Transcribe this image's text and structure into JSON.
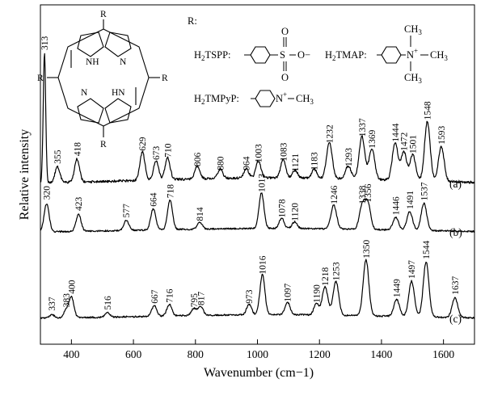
{
  "chart_data": {
    "type": "line",
    "xlabel": "Wavenumber (cm−1)",
    "ylabel": "Relative intensity",
    "xlim": [
      300,
      1700
    ],
    "xticks": [
      400,
      600,
      800,
      1000,
      1200,
      1400,
      1600
    ],
    "grid": false,
    "legend": "none",
    "series": [
      {
        "name": "(a)",
        "peaks": [
          313,
          355,
          418,
          629,
          673,
          710,
          806,
          880,
          964,
          1003,
          1083,
          1121,
          1183,
          1232,
          1293,
          1337,
          1369,
          1444,
          1472,
          1501,
          1548,
          1593
        ],
        "peak_labels": [
          "313",
          "355",
          "418",
          "629",
          "673",
          "710",
          "806",
          "880",
          "964",
          "1003",
          "1083",
          "1121",
          "1183",
          "1232",
          "1293",
          "1337",
          "1369",
          "1444",
          "1472",
          "1501",
          "1548",
          "1593"
        ],
        "peak_heights": [
          1.0,
          0.12,
          0.18,
          0.22,
          0.15,
          0.17,
          0.1,
          0.07,
          0.07,
          0.13,
          0.14,
          0.06,
          0.07,
          0.28,
          0.1,
          0.33,
          0.24,
          0.29,
          0.22,
          0.2,
          0.46,
          0.27
        ]
      },
      {
        "name": "(b)",
        "peaks": [
          320,
          423,
          577,
          664,
          718,
          814,
          1013,
          1078,
          1120,
          1246,
          1338,
          1356,
          1446,
          1491,
          1537
        ],
        "peak_labels": [
          "320",
          "423",
          "577",
          "664",
          "718",
          "814",
          "1013",
          "1078",
          "1120",
          "1246",
          "1338",
          "1356",
          "1446",
          "1491",
          "1537"
        ],
        "peak_heights": [
          0.33,
          0.2,
          0.12,
          0.25,
          0.35,
          0.08,
          0.42,
          0.12,
          0.08,
          0.28,
          0.28,
          0.3,
          0.15,
          0.22,
          0.32
        ]
      },
      {
        "name": "(c)",
        "peaks": [
          337,
          383,
          400,
          516,
          667,
          716,
          795,
          817,
          973,
          1016,
          1097,
          1190,
          1218,
          1253,
          1350,
          1449,
          1497,
          1544,
          1637
        ],
        "peak_labels": [
          "337",
          "383",
          "400",
          "516",
          "667",
          "716",
          "795",
          "817",
          "973",
          "1016",
          "1097",
          "1190",
          "1218",
          "1253",
          "1350",
          "1449",
          "1497",
          "1544",
          "1637"
        ],
        "peak_heights": [
          0.04,
          0.08,
          0.23,
          0.05,
          0.12,
          0.13,
          0.08,
          0.1,
          0.12,
          0.45,
          0.14,
          0.13,
          0.32,
          0.38,
          0.63,
          0.19,
          0.4,
          0.62,
          0.22
        ]
      }
    ]
  },
  "inset": {
    "r_label": "R:",
    "r_substituent": "R",
    "nh_label": "NH",
    "hn_label": "HN",
    "n_label": "N",
    "tspp_label": "H2TSPP:",
    "tmap_label": "H2TMAP:",
    "tmpyp_label": "H2TMPyP:",
    "sulfur": "S",
    "oxygen": "O",
    "o_minus": "O−",
    "n_plus": "N+",
    "methyl": "CH3"
  }
}
